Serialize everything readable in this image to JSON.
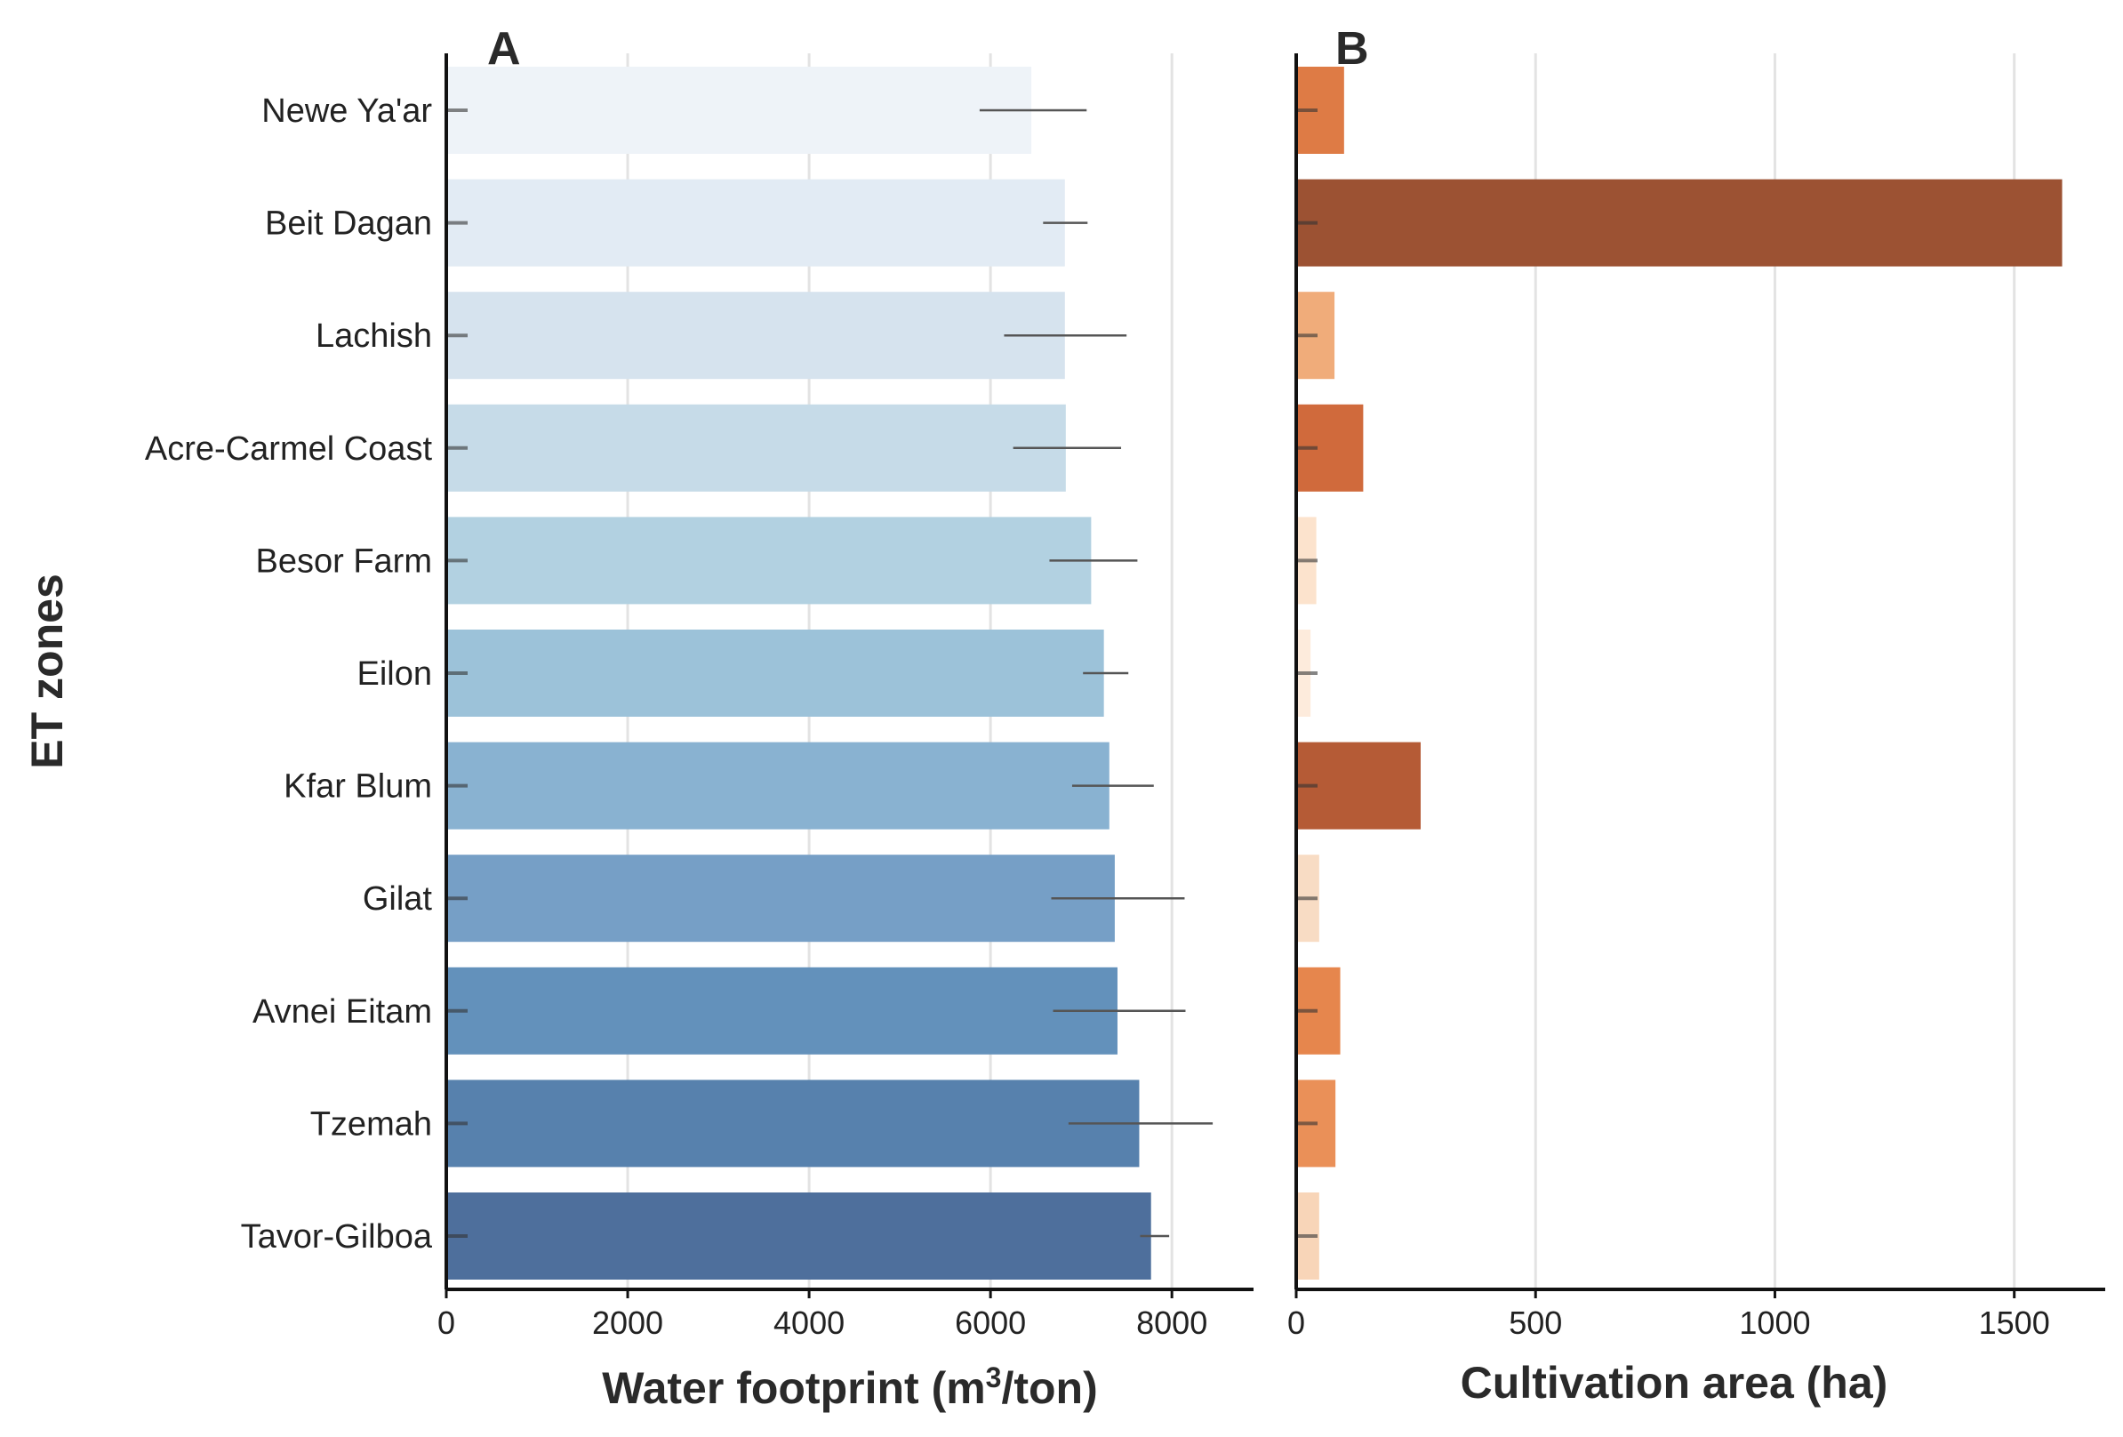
{
  "chart_data": [
    {
      "panel": "A",
      "type": "bar",
      "orientation": "horizontal",
      "categories": [
        "Newe Ya'ar",
        "Beit Dagan",
        "Lachish",
        "Acre-Carmel Coast",
        "Besor Farm",
        "Eilon",
        "Kfar Blum",
        "Gilat",
        "Avnei Eitam",
        "Tzemah",
        "Tavor-Gilboa"
      ],
      "values": [
        6450,
        6820,
        6820,
        6830,
        7110,
        7250,
        7310,
        7370,
        7400,
        7640,
        7770
      ],
      "error_low": [
        5880,
        6580,
        6150,
        6250,
        6650,
        7020,
        6900,
        6670,
        6690,
        6860,
        7650
      ],
      "error_high": [
        7060,
        7070,
        7500,
        7440,
        7620,
        7520,
        7800,
        8140,
        8150,
        8450,
        7970
      ],
      "colors": [
        "#eef3f8",
        "#e2ebf4",
        "#d6e3ee",
        "#c6dbe8",
        "#b2d1e1",
        "#9cc2d9",
        "#89b2d1",
        "#769fc6",
        "#6391bb",
        "#5781ad",
        "#4e6f9c"
      ],
      "xlabel_main": "Water footprint (m",
      "xlabel_sup": "3",
      "xlabel_end": "/ton)",
      "ylabel": "ET zones",
      "xlim": [
        0,
        8900
      ],
      "xticks": [
        "0",
        "2000",
        "4000",
        "6000",
        "8000"
      ],
      "grid": true
    },
    {
      "panel": "B",
      "type": "bar",
      "orientation": "horizontal",
      "categories": [
        "Newe Ya'ar",
        "Beit Dagan",
        "Lachish",
        "Acre-Carmel Coast",
        "Besor Farm",
        "Eilon",
        "Kfar Blum",
        "Gilat",
        "Avnei Eitam",
        "Tzemah",
        "Tavor-Gilboa"
      ],
      "values": [
        100,
        1600,
        80,
        140,
        42,
        30,
        260,
        48,
        92,
        82,
        48
      ],
      "colors": [
        "#de7b45",
        "#9c5233",
        "#f0ac7a",
        "#d06a3c",
        "#fce3cd",
        "#fdebdc",
        "#b55b36",
        "#f8dcc4",
        "#e6864d",
        "#ea9058",
        "#f8d5b8"
      ],
      "xlabel": "Cultivation area (ha)",
      "xlim": [
        0,
        1690
      ],
      "xticks": [
        "0",
        "500",
        "1000",
        "1500"
      ],
      "grid": true
    }
  ]
}
